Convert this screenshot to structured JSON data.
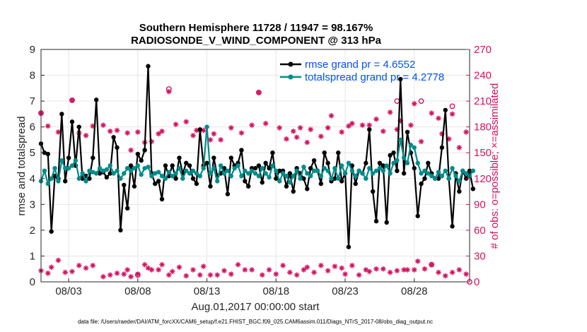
{
  "chart_data": {
    "type": "line",
    "title": "Southern Hemisphere 11728 / 11947 = 98.167%",
    "subtitle": "RADIOSONDE_V_WIND_COMPONENT @ 313 hPa",
    "xlabel": "Aug.01,2017 00:00:00 start",
    "ylabel": "rmse and totalspread",
    "y2label": "# of obs: o=possible; ×=assimilated",
    "footnote": "data file: /Users/raeder/DAI/ATM_forcXX/CAM6_setup/f.e21.FHIST_BGC.f09_025.CAM6assim.011/Diags_NTrS_2017-08/obs_diag_output.nc",
    "xlim": [
      1.0,
      32.0
    ],
    "ylim": [
      0,
      9
    ],
    "y2lim": [
      0,
      270
    ],
    "x_tick_values": [
      3,
      8,
      13,
      18,
      23,
      28
    ],
    "x_tick_labels": [
      "08/03",
      "08/08",
      "08/13",
      "08/18",
      "08/23",
      "08/28"
    ],
    "y_ticks": [
      0,
      1,
      2,
      3,
      4,
      5,
      6,
      7,
      8,
      9
    ],
    "y2_ticks": [
      0,
      30,
      60,
      90,
      120,
      150,
      180,
      210,
      240,
      270
    ],
    "legend_location": "top-right",
    "x_start": 1.0,
    "x_step": 0.25,
    "series": [
      {
        "name": "rmse grand pr = 4.6552",
        "color": "#000000",
        "values": [
          5.35,
          5.0,
          4.95,
          1.95,
          4.1,
          4.0,
          6.5,
          3.9,
          4.8,
          6.2,
          4.5,
          6.0,
          4.0,
          4.1,
          4.0,
          4.8,
          7.05,
          4.2,
          4.25,
          4.05,
          4.2,
          5.6,
          5.2,
          2.0,
          3.75,
          2.85,
          4.5,
          3.7,
          4.95,
          4.7,
          5.1,
          8.35,
          4.2,
          3.8,
          3.9,
          3.2,
          4.5,
          4.1,
          4.5,
          4.0,
          4.8,
          4.2,
          4.6,
          4.5,
          4.0,
          3.8,
          5.9,
          4.5,
          4.6,
          3.7,
          4.8,
          4.1,
          4.2,
          4.4,
          3.4,
          4.8,
          4.5,
          4.6,
          5.1,
          3.9,
          3.7,
          4.4,
          4.4,
          4.5,
          3.85,
          4.6,
          4.4,
          5.0,
          4.0,
          4.3,
          4.3,
          3.7,
          4.2,
          3.5,
          4.4,
          4.2,
          4.0,
          3.6,
          4.4,
          4.7,
          4.3,
          3.8,
          5.0,
          4.6,
          3.9,
          4.0,
          5.0,
          3.9,
          4.2,
          1.35,
          4.5,
          3.8,
          4.3,
          4.2,
          4.6,
          5.9,
          3.5,
          2.35,
          4.6,
          4.5,
          2.3,
          4.9,
          5.0,
          4.3,
          7.85,
          4.2,
          5.8,
          5.0,
          4.4,
          2.55,
          3.8,
          4.0,
          4.6,
          4.2,
          4.0,
          4.0,
          5.2,
          6.65,
          4.0,
          2.15,
          4.2,
          3.5,
          4.3,
          4.0,
          4.3,
          3.6
        ]
      },
      {
        "name": "totalspread grand pr = 4.2778",
        "color": "#008b8b",
        "values": [
          3.9,
          4.3,
          3.8,
          4.0,
          4.4,
          3.9,
          4.7,
          4.4,
          4.4,
          4.5,
          4.7,
          4.0,
          4.2,
          3.9,
          4.3,
          4.25,
          4.2,
          4.4,
          4.3,
          4.35,
          4.5,
          4.2,
          4.3,
          4.0,
          4.2,
          4.4,
          4.3,
          4.4,
          4.5,
          4.15,
          4.4,
          4.45,
          4.1,
          4.2,
          4.25,
          4.1,
          4.0,
          4.25,
          4.1,
          4.2,
          4.4,
          4.0,
          4.3,
          4.2,
          4.3,
          4.2,
          4.1,
          4.4,
          6.0,
          4.2,
          4.4,
          3.9,
          4.5,
          4.2,
          4.3,
          4.1,
          4.4,
          4.5,
          4.1,
          4.3,
          4.2,
          4.3,
          4.2,
          4.1,
          4.4,
          4.2,
          4.05,
          4.5,
          4.3,
          3.9,
          4.2,
          4.1,
          3.85,
          4.1,
          4.3,
          4.0,
          4.45,
          4.2,
          4.1,
          4.3,
          4.3,
          4.1,
          4.4,
          4.3,
          4.0,
          4.4,
          4.0,
          4.5,
          4.2,
          4.6,
          4.3,
          4.1,
          4.3,
          4.2,
          4.0,
          4.4,
          4.2,
          4.3,
          4.4,
          4.3,
          4.5,
          4.2,
          4.6,
          4.7,
          5.5,
          4.8,
          4.6,
          5.3,
          5.2,
          4.6,
          4.2,
          4.3,
          4.2,
          4.1,
          4.0,
          4.25,
          4.1,
          4.3,
          4.0,
          4.4,
          4.1,
          3.9,
          4.3,
          4.2,
          4.1,
          4.3
        ]
      }
    ],
    "obs_upper": [
      [
        1.0,
        196
      ],
      [
        1.5,
        181
      ],
      [
        2.25,
        174
      ],
      [
        3.25,
        211
      ],
      [
        3.75,
        173
      ],
      [
        4.25,
        170
      ],
      [
        4.75,
        181
      ],
      [
        5.5,
        182
      ],
      [
        6.0,
        175
      ],
      [
        6.5,
        176
      ],
      [
        7.25,
        173
      ],
      [
        7.5,
        153
      ],
      [
        8.0,
        174
      ],
      [
        8.5,
        162
      ],
      [
        9.0,
        163
      ],
      [
        9.5,
        172
      ],
      [
        9.75,
        175
      ],
      [
        10.25,
        221
      ],
      [
        10.75,
        183
      ],
      [
        11.5,
        186
      ],
      [
        12.0,
        170
      ],
      [
        12.25,
        176
      ],
      [
        12.75,
        176
      ],
      [
        13.25,
        165
      ],
      [
        13.5,
        172
      ],
      [
        14.0,
        165
      ],
      [
        14.75,
        179
      ],
      [
        15.5,
        173
      ],
      [
        16.25,
        182
      ],
      [
        16.75,
        220
      ],
      [
        17.25,
        184
      ],
      [
        18.25,
        179
      ],
      [
        18.75,
        166
      ],
      [
        19.25,
        175
      ],
      [
        19.5,
        168
      ],
      [
        19.75,
        179
      ],
      [
        20.25,
        162
      ],
      [
        20.5,
        177
      ],
      [
        21.25,
        169
      ],
      [
        21.75,
        179
      ],
      [
        22.0,
        193
      ],
      [
        22.75,
        174
      ],
      [
        23.25,
        181
      ],
      [
        23.5,
        184
      ],
      [
        24.25,
        182
      ],
      [
        24.75,
        182
      ],
      [
        25.25,
        189
      ],
      [
        25.75,
        175
      ],
      [
        26.25,
        197
      ],
      [
        26.75,
        177
      ],
      [
        27.0,
        187
      ],
      [
        27.75,
        182
      ],
      [
        28.0,
        207
      ],
      [
        28.5,
        163
      ],
      [
        29.25,
        196
      ],
      [
        29.75,
        190
      ],
      [
        30.0,
        172
      ],
      [
        30.5,
        166
      ],
      [
        30.75,
        195
      ],
      [
        31.25,
        156
      ],
      [
        31.75,
        174
      ]
    ],
    "obs_upper_possible_rings": [
      [
        1.0,
        196
      ],
      [
        3.25,
        211
      ],
      [
        10.25,
        224
      ],
      [
        16.75,
        220
      ],
      [
        26.75,
        210
      ],
      [
        28.5,
        210
      ],
      [
        30.75,
        204
      ]
    ],
    "obs_lower": [
      [
        1.0,
        13
      ],
      [
        1.5,
        10
      ],
      [
        1.75,
        17
      ],
      [
        2.25,
        25
      ],
      [
        2.75,
        11
      ],
      [
        3.25,
        12
      ],
      [
        3.75,
        19
      ],
      [
        4.25,
        16
      ],
      [
        4.75,
        19
      ],
      [
        5.5,
        6
      ],
      [
        6.0,
        8
      ],
      [
        6.5,
        10
      ],
      [
        7.0,
        9
      ],
      [
        7.25,
        14
      ],
      [
        7.5,
        6
      ],
      [
        8.0,
        9
      ],
      [
        8.5,
        20
      ],
      [
        8.75,
        16
      ],
      [
        9.0,
        14
      ],
      [
        9.5,
        14
      ],
      [
        9.75,
        20
      ],
      [
        10.25,
        8
      ],
      [
        10.5,
        12
      ],
      [
        11.0,
        17
      ],
      [
        11.5,
        7
      ],
      [
        12.0,
        14
      ],
      [
        12.5,
        8
      ],
      [
        12.75,
        18
      ],
      [
        13.25,
        8
      ],
      [
        13.75,
        8
      ],
      [
        14.25,
        13
      ],
      [
        14.75,
        9
      ],
      [
        15.25,
        20
      ],
      [
        15.75,
        14
      ],
      [
        16.25,
        14
      ],
      [
        17.0,
        8
      ],
      [
        17.5,
        14
      ],
      [
        18.0,
        9
      ],
      [
        18.5,
        19
      ],
      [
        19.0,
        11
      ],
      [
        19.5,
        8
      ],
      [
        20.0,
        14
      ],
      [
        20.25,
        17
      ],
      [
        20.75,
        11
      ],
      [
        21.25,
        19
      ],
      [
        21.75,
        13
      ],
      [
        22.25,
        18
      ],
      [
        22.75,
        16
      ],
      [
        23.0,
        9
      ],
      [
        23.5,
        19
      ],
      [
        24.0,
        8
      ],
      [
        24.5,
        14
      ],
      [
        24.75,
        12
      ],
      [
        25.25,
        15
      ],
      [
        25.75,
        15
      ],
      [
        26.25,
        11
      ],
      [
        26.75,
        13
      ],
      [
        27.25,
        14
      ],
      [
        27.5,
        14
      ],
      [
        28.0,
        14
      ],
      [
        28.25,
        24
      ],
      [
        28.75,
        15
      ],
      [
        29.25,
        20
      ],
      [
        29.75,
        11
      ],
      [
        30.25,
        7
      ],
      [
        30.75,
        11
      ],
      [
        31.25,
        14
      ],
      [
        31.75,
        9
      ]
    ],
    "obs_lower_possible_rings": [
      [
        8.0,
        8
      ],
      [
        29.25,
        20
      ]
    ]
  },
  "legend": {
    "rmse_label": "rmse grand pr = 4.6552",
    "spread_label": "totalspread grand pr = 4.2778"
  },
  "colors": {
    "rmse": "#000000",
    "spread": "#008b8b",
    "obs": "#d6105f",
    "legend_text": "#0050ff",
    "grid": "#e6e6e6"
  }
}
